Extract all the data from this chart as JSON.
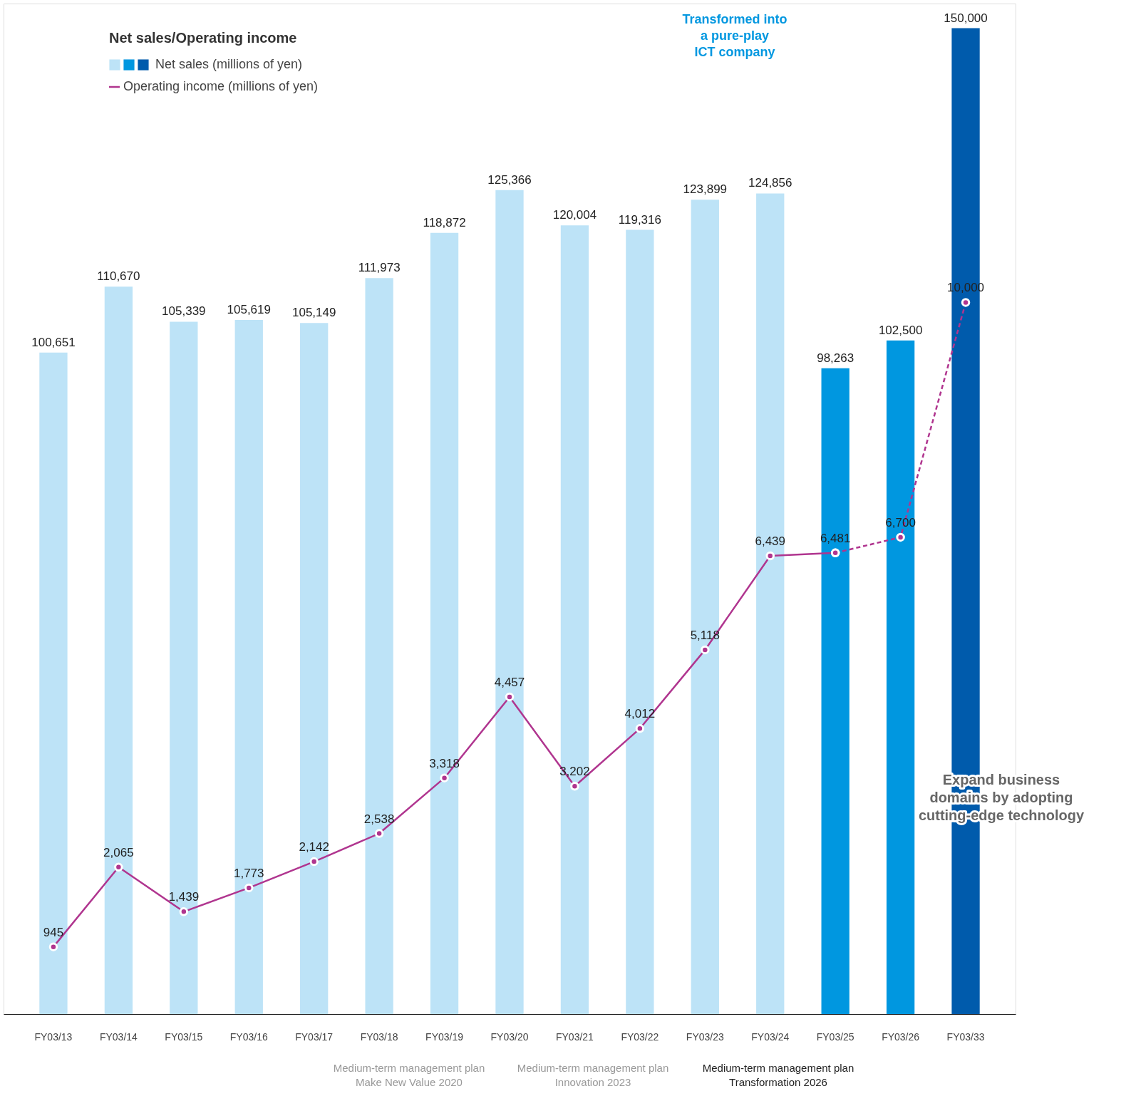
{
  "chart_data": {
    "type": "bar",
    "legend_title": "Net sales/Operating income",
    "legend": "top left",
    "categories": [
      "FY03/13",
      "FY03/14",
      "FY03/15",
      "FY03/16",
      "FY03/17",
      "FY03/18",
      "FY03/19",
      "FY03/20",
      "FY03/21",
      "FY03/22",
      "FY03/23",
      "FY03/24",
      "FY03/25",
      "FY03/26",
      "FY03/33"
    ],
    "series": [
      {
        "name": "Net sales (millions of yen)",
        "colors": [
          "#bde3f7",
          "#bde3f7",
          "#bde3f7",
          "#bde3f7",
          "#bde3f7",
          "#bde3f7",
          "#bde3f7",
          "#bde3f7",
          "#bde3f7",
          "#bde3f7",
          "#bde3f7",
          "#bde3f7",
          "#0097e0",
          "#0097e0",
          "#005bac"
        ],
        "values": [
          100651,
          110670,
          105339,
          105619,
          105149,
          111973,
          118872,
          125366,
          120004,
          119316,
          123899,
          124856,
          98263,
          102500,
          150000
        ],
        "value_labels": [
          "100,651",
          "110,670",
          "105,339",
          "105,619",
          "105,149",
          "111,973",
          "118,872",
          "125,366",
          "120,004",
          "119,316",
          "123,899",
          "124,856",
          "98,263",
          "102,500",
          "150,000"
        ]
      },
      {
        "name": "Operating income (millions of yen)",
        "type": "line",
        "axis": "y2",
        "color": "#b0358f",
        "line_style": "solid",
        "marker": "circle",
        "values": [
          945,
          2065,
          1439,
          1773,
          2142,
          2538,
          3318,
          4457,
          3202,
          4012,
          5118,
          6439,
          6481,
          null,
          null
        ],
        "value_labels": [
          "945",
          "2,065",
          "1,439",
          "1,773",
          "2,142",
          "2,538",
          "3,318",
          "4,457",
          "3,202",
          "4,012",
          "5,118",
          "6,439",
          "6,481",
          null,
          null
        ]
      },
      {
        "type": "line",
        "axis": "y2",
        "color": "#b0358f",
        "line_style": "dashed",
        "marker": "circle",
        "values": [
          null,
          null,
          null,
          null,
          null,
          null,
          null,
          null,
          null,
          null,
          null,
          null,
          6481,
          6700,
          10000
        ],
        "value_labels": [
          null,
          null,
          null,
          null,
          null,
          null,
          null,
          null,
          null,
          null,
          null,
          null,
          null,
          "6,700",
          "10,000"
        ]
      }
    ],
    "tick_labels": "x",
    "annotations": [
      "Transformed into\na pure-play\nICT company",
      "Expand business\ndomains by adopting\ncutting-edge technology",
      "Medium-term management plan\nMake New Value 2020",
      "Medium-term management plan\nInnovation 2023",
      "Medium-term management plan\nTransformation 2026"
    ]
  }
}
